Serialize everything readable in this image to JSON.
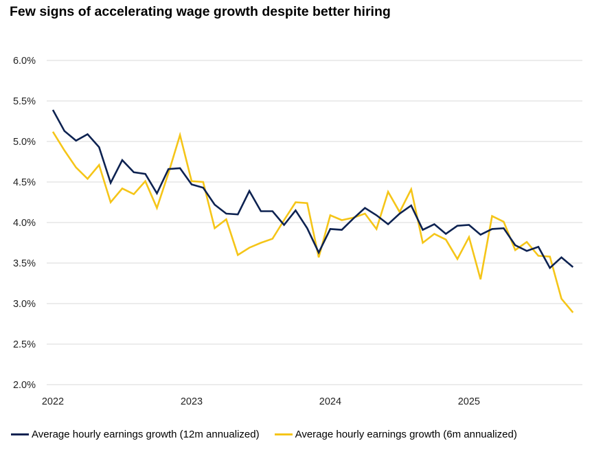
{
  "chart_data": {
    "type": "line",
    "title": "Few signs of accelerating wage growth despite better hiring",
    "xlabel": "",
    "ylabel": "",
    "ylim": [
      2.0,
      6.0
    ],
    "yticks": [
      "2.0%",
      "2.5%",
      "3.0%",
      "3.5%",
      "4.0%",
      "4.5%",
      "5.0%",
      "5.5%",
      "6.0%"
    ],
    "ytick_values": [
      2.0,
      2.5,
      3.0,
      3.5,
      4.0,
      4.5,
      5.0,
      5.5,
      6.0
    ],
    "xticks": [
      "2022",
      "2023",
      "2024",
      "2025"
    ],
    "xtick_values": [
      0,
      12,
      24,
      36
    ],
    "x_unit": "months since Jan 2022",
    "grid": true,
    "legend_position": "bottom",
    "series": [
      {
        "name": "Average hourly earnings growth (12m annualized)",
        "color": "#0d2251",
        "values": [
          5.39,
          5.13,
          5.01,
          5.09,
          4.93,
          4.49,
          4.77,
          4.62,
          4.6,
          4.36,
          4.66,
          4.67,
          4.47,
          4.43,
          4.22,
          4.11,
          4.1,
          4.39,
          4.14,
          4.14,
          3.97,
          4.15,
          3.93,
          3.63,
          3.92,
          3.91,
          4.05,
          4.18,
          4.09,
          3.98,
          4.11,
          4.21,
          3.91,
          3.98,
          3.86,
          3.96,
          3.97,
          3.85,
          3.92,
          3.93,
          3.72,
          3.65,
          3.7,
          3.44,
          3.57,
          3.45
        ]
      },
      {
        "name": "Average hourly earnings growth (6m annualized)",
        "color": "#f5c518",
        "values": [
          5.12,
          4.89,
          4.68,
          4.54,
          4.71,
          4.25,
          4.42,
          4.35,
          4.51,
          4.18,
          4.61,
          5.08,
          4.51,
          4.5,
          3.93,
          4.04,
          3.6,
          3.69,
          3.75,
          3.8,
          4.03,
          4.25,
          4.24,
          3.57,
          4.09,
          4.03,
          4.06,
          4.11,
          3.92,
          4.38,
          4.13,
          4.41,
          3.75,
          3.86,
          3.79,
          3.55,
          3.82,
          3.3,
          4.08,
          4.01,
          3.66,
          3.76,
          3.59,
          3.58,
          3.06,
          2.89
        ]
      }
    ]
  }
}
